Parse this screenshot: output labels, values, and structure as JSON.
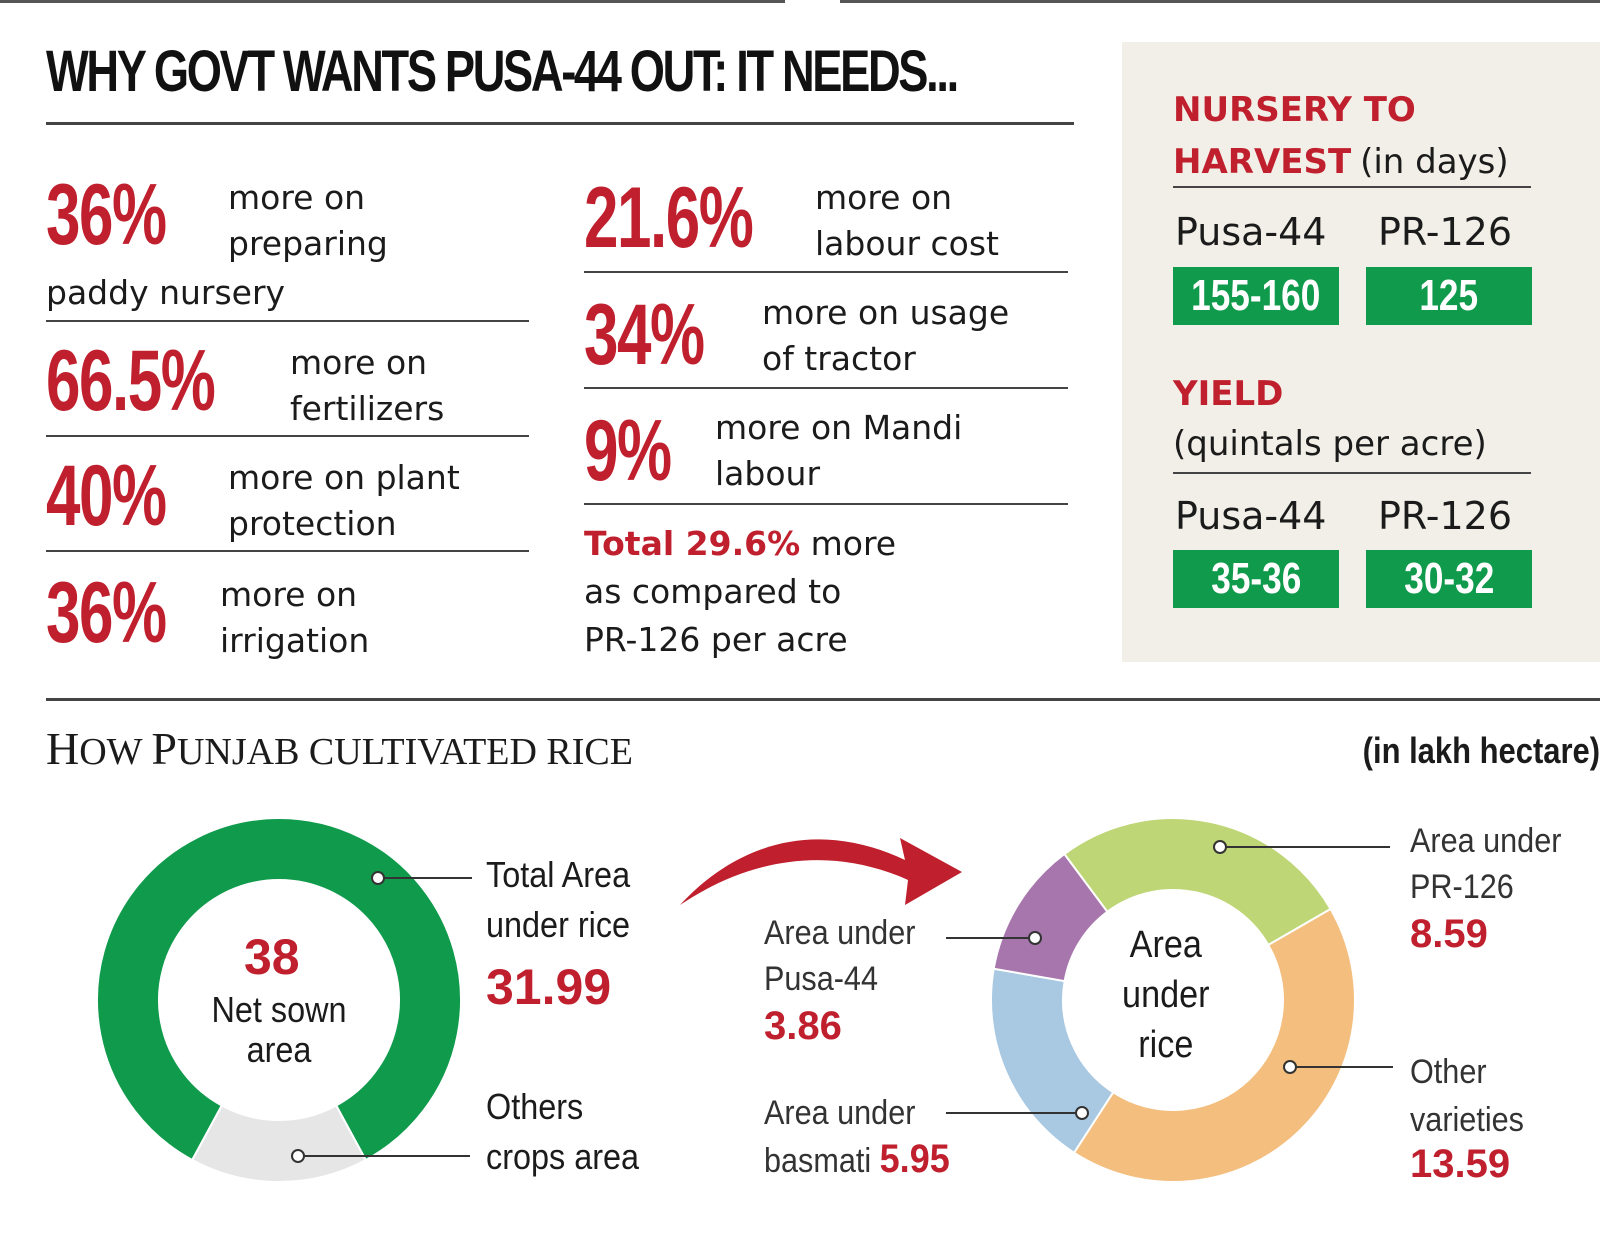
{
  "headline": "WHY GOVT WANTS PUSA-44 OUT: IT NEEDS...",
  "cost_stats_left": [
    {
      "value": "36%",
      "line1": "more on",
      "line2": "preparing",
      "line3": "paddy nursery"
    },
    {
      "value": "66.5%",
      "line1": "more on",
      "line2": "fertilizers"
    },
    {
      "value": "40%",
      "line1": "more on plant",
      "line2": "protection"
    },
    {
      "value": "36%",
      "line1": "more on",
      "line2": "irrigation"
    }
  ],
  "cost_stats_right": [
    {
      "value": "21.6%",
      "line1": "more on",
      "line2": "labour cost"
    },
    {
      "value": "34%",
      "line1": "more on usage",
      "line2": "of tractor"
    },
    {
      "value": "9%",
      "line1": "more on Mandi",
      "line2": "labour"
    }
  ],
  "total": {
    "highlight": "Total 29.6%",
    "rest1": " more",
    "line2": "as compared to",
    "line3": "PR-126 per acre"
  },
  "side_panel": {
    "nursery": {
      "title_line1": "NURSERY TO",
      "title_line2": "HARVEST",
      "unit": "(in days)",
      "varieties": [
        {
          "name": "Pusa-44",
          "value": "155-160"
        },
        {
          "name": "PR-126",
          "value": "125"
        }
      ]
    },
    "yield": {
      "title": "YIELD",
      "unit": "(quintals per acre)",
      "varieties": [
        {
          "name": "Pusa-44",
          "value": "35-36"
        },
        {
          "name": "PR-126",
          "value": "30-32"
        }
      ]
    }
  },
  "section2": {
    "title_cap1": "H",
    "title_rest1": "OW ",
    "title_cap2": "P",
    "title_rest2": "UNJAB CULTIVATED RICE",
    "unit": "(in lakh hectare)"
  },
  "chart_data": [
    {
      "type": "pie",
      "title": "Net sown area",
      "center_value": "38",
      "center_label": "Net sown area",
      "unit": "lakh hectare",
      "slices": [
        {
          "label": "Total Area under rice",
          "value": 31.99,
          "color": "#0f9a4c"
        },
        {
          "label": "Others crops area",
          "value": 6.01,
          "color": "#e6e6e6"
        }
      ],
      "annotations": {
        "rice_label_line1": "Total Area",
        "rice_label_line2": "under rice",
        "rice_value": "31.99",
        "others_label_line1": "Others",
        "others_label_line2": "crops area"
      }
    },
    {
      "type": "pie",
      "title": "Area under rice",
      "center_label_line1": "Area",
      "center_label_line2": "under",
      "center_label_line3": "rice",
      "unit": "lakh hectare",
      "slices": [
        {
          "label": "Area under PR-126",
          "value": 8.59,
          "color": "#bfd677"
        },
        {
          "label": "Other varieties",
          "value": 13.59,
          "color": "#f3be7e"
        },
        {
          "label": "Area under basmati",
          "value": 5.95,
          "color": "#a9c8e1"
        },
        {
          "label": "Area under Pusa-44",
          "value": 3.86,
          "color": "#a676ac"
        }
      ],
      "annotations": {
        "pr126_line1": "Area under",
        "pr126_line2": "PR-126",
        "pr126_value": "8.59",
        "other_line1": "Other",
        "other_line2": "varieties",
        "other_value": "13.59",
        "basmati_line1": "Area under",
        "basmati_line2": "basmati",
        "basmati_value": "5.95",
        "pusa_line1": "Area under",
        "pusa_line2": "Pusa-44",
        "pusa_value": "3.86"
      }
    }
  ],
  "colors": {
    "accent_red": "#c0202e",
    "green": "#0f9a4c",
    "panel_bg": "#f1efe7"
  }
}
